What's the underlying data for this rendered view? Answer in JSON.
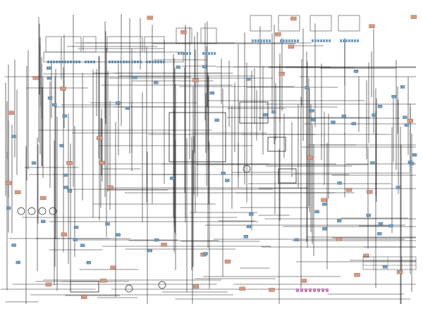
{
  "diagram": {
    "type": "wiring-schematic",
    "colors": {
      "background": "#ffffff",
      "wire": "#1a1a1a",
      "connector_blue": "#6f9fc4",
      "connector_salmon": "#d49a82",
      "connector_pink": "#c77fb8",
      "component_gray": "#bfbfbf"
    }
  }
}
